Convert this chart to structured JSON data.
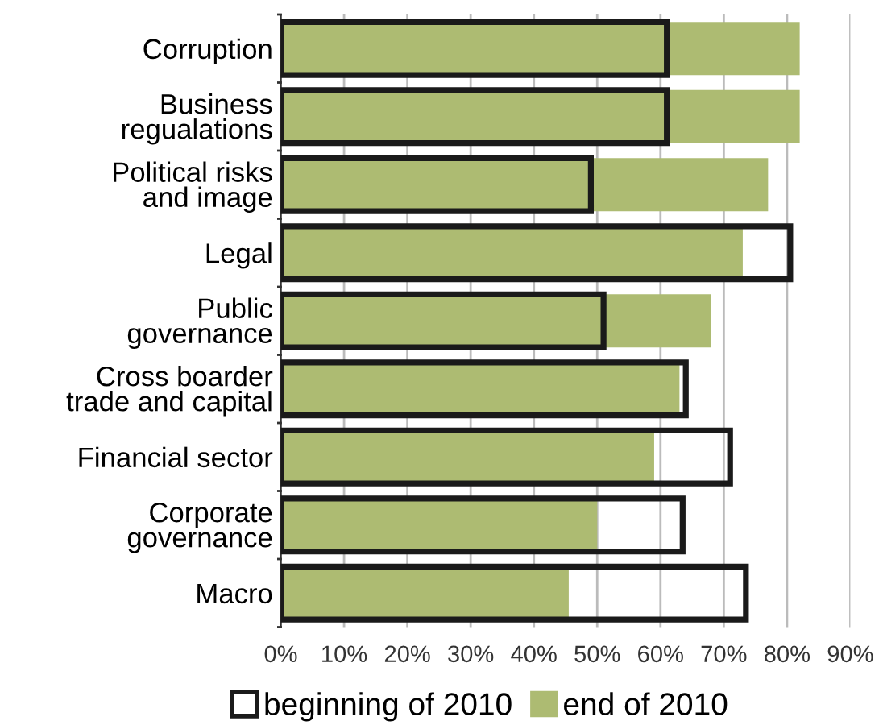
{
  "chart_data": {
    "type": "bar",
    "orientation": "horizontal",
    "categories": [
      "Corruption",
      "Business\nregualations",
      "Political risks\nand image",
      "Legal",
      "Public\ngovernance",
      "Cross boarder\ntrade and capital",
      "Financial sector",
      "Corporate\ngovernance",
      "Macro"
    ],
    "series": [
      {
        "name": "end of 2010",
        "color": "#adbb72",
        "values": [
          82,
          82,
          77,
          73,
          68,
          63,
          59,
          50,
          45.5
        ]
      },
      {
        "name": "beginning of 2010",
        "color": "#1a1a1a",
        "values": [
          61,
          61,
          49,
          80.5,
          51,
          64,
          71,
          63.5,
          73.5
        ]
      }
    ],
    "xlim": [
      0,
      90
    ],
    "xticks": [
      {
        "value": 0,
        "label": "0%"
      },
      {
        "value": 10,
        "label": "10%"
      },
      {
        "value": 20,
        "label": "20%"
      },
      {
        "value": 30,
        "label": "30%"
      },
      {
        "value": 40,
        "label": "40%"
      },
      {
        "value": 50,
        "label": "50%"
      },
      {
        "value": 60,
        "label": "60%"
      },
      {
        "value": 70,
        "label": "70%"
      },
      {
        "value": 80,
        "label": "80%"
      },
      {
        "value": 90,
        "label": "90%"
      }
    ],
    "grid": "x",
    "legend": "bottom"
  }
}
